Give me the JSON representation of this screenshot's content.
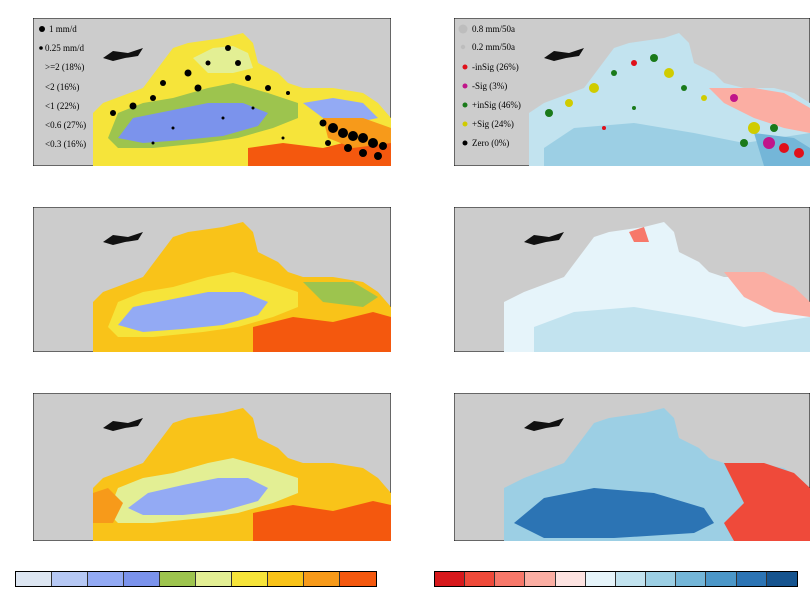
{
  "panels": [
    {
      "id": "a",
      "legend": [
        "1 mm/d",
        "0.25 mm/d",
        ">=2 (18%)",
        "<2 (16%)",
        "<1 (22%)",
        "<0.6 (27%)",
        "<0.3 (16%)"
      ]
    },
    {
      "id": "b",
      "legend": [
        "0.8 mm/50a",
        "0.2 mm/50a",
        "-inSig (26%)",
        "-Sig (3%)",
        "+inSig (46%)",
        "+Sig (24%)",
        "Zero (0%)"
      ]
    },
    {
      "id": "c",
      "legend": []
    },
    {
      "id": "d",
      "legend": []
    },
    {
      "id": "e",
      "legend": []
    },
    {
      "id": "f",
      "legend": []
    }
  ],
  "colors": {
    "background_gray": "#cccccc",
    "climatology_scale": [
      "#dde6f2",
      "#b6c8f4",
      "#93aaf4",
      "#7b93ec",
      "#9dc44e",
      "#e3ef94",
      "#f6e43a",
      "#f9c319",
      "#f79a1a",
      "#f4580e"
    ],
    "trend_scale": [
      "#d7191c",
      "#ef4a3a",
      "#f7786a",
      "#fbaea3",
      "#fde3e1",
      "#e6f4fa",
      "#c2e3ef",
      "#9ccfe4",
      "#74b6d8",
      "#4c97c8",
      "#2c74b4",
      "#16548f"
    ]
  }
}
